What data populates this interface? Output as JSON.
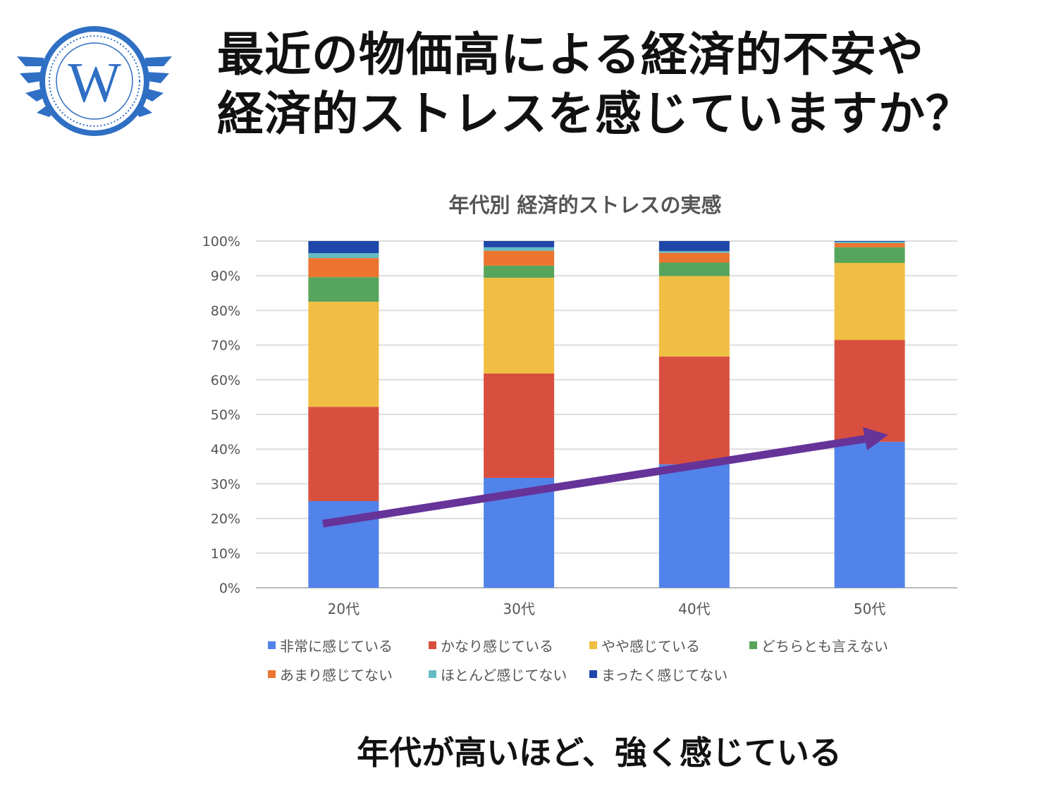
{
  "header": {
    "line1": "最近の物価高による経済的不安や",
    "line2": "経済的ストレスを感じていますか？",
    "logo_letter": "W"
  },
  "caption": "年代が高いほど、強く感じている",
  "chart_data": {
    "type": "bar",
    "stacked": true,
    "title": "年代別 経済的ストレスの実感",
    "categories": [
      "20代",
      "30代",
      "40代",
      "50代"
    ],
    "ylim": [
      0,
      100
    ],
    "yticks": [
      "0%",
      "10%",
      "20%",
      "30%",
      "40%",
      "50%",
      "60%",
      "70%",
      "80%",
      "90%",
      "100%"
    ],
    "series": [
      {
        "name": "非常に感じている",
        "color": "#5183EA",
        "values": [
          25.0,
          31.7,
          35.6,
          42.1
        ]
      },
      {
        "name": "かなり感じている",
        "color": "#D94F3F",
        "values": [
          27.2,
          30.1,
          31.1,
          29.4
        ]
      },
      {
        "name": "やや感じている",
        "color": "#F0BE42",
        "values": [
          30.3,
          27.6,
          23.2,
          22.2
        ]
      },
      {
        "name": "どちらとも言えない",
        "color": "#57A55C",
        "values": [
          7.1,
          3.5,
          3.9,
          4.5
        ]
      },
      {
        "name": "あまり感じてない",
        "color": "#EB752F",
        "values": [
          5.5,
          4.3,
          2.8,
          1.2
        ]
      },
      {
        "name": "ほとんど感じてない",
        "color": "#66BBC3",
        "values": [
          1.4,
          1.0,
          0.5,
          0.4
        ]
      },
      {
        "name": "まったく感じてない",
        "color": "#1F47A9",
        "values": [
          3.5,
          1.8,
          2.9,
          0.2
        ]
      }
    ],
    "annotation": {
      "type": "trend-arrow",
      "color": "#663399",
      "from_category": "20代",
      "to_category": "50代"
    },
    "legend": "bottom"
  }
}
